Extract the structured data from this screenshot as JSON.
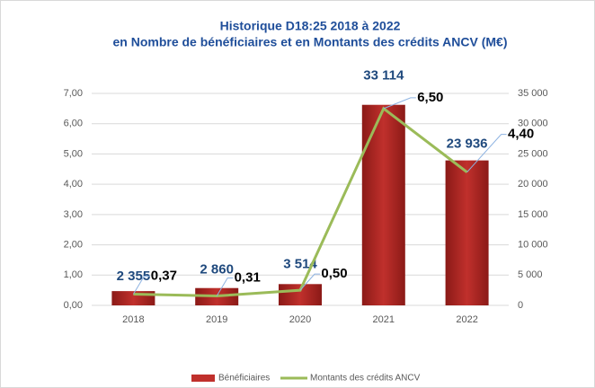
{
  "chart_data": {
    "type": "bar",
    "title": "Historique D18:25 2018 à 2022",
    "subtitle": "en Nombre de bénéficiaires et en Montants des crédits ANCV (M€)",
    "categories": [
      "2018",
      "2019",
      "2020",
      "2021",
      "2022"
    ],
    "series": [
      {
        "name": "Bénéficiaires",
        "type": "bar",
        "axis": "y2",
        "color": "#c0302c",
        "values": [
          2355,
          2860,
          3514,
          33114,
          23936
        ],
        "value_labels": [
          "2 355",
          "2 860",
          "3 514",
          "33 114",
          "23 936"
        ]
      },
      {
        "name": "Montants des crédits ANCV",
        "type": "line",
        "color": "#9bbb59",
        "values": [
          0.37,
          0.31,
          0.5,
          6.5,
          4.4
        ],
        "value_labels": [
          "0,37",
          "0,31",
          "0,50",
          "6,50",
          "4,40"
        ]
      }
    ],
    "ylim": [
      0,
      7
    ],
    "yticks": [
      {
        "value": 0,
        "label": "0,00"
      },
      {
        "value": 1,
        "label": "1,00"
      },
      {
        "value": 2,
        "label": "2,00"
      },
      {
        "value": 3,
        "label": "3,00"
      },
      {
        "value": 4,
        "label": "4,00"
      },
      {
        "value": 5,
        "label": "5,00"
      },
      {
        "value": 6,
        "label": "6,00"
      },
      {
        "value": 7,
        "label": "7,00"
      }
    ],
    "y2lim": [
      0,
      35000
    ],
    "y2ticks": [
      0,
      {
        "value": 5000,
        "label": "5 000"
      },
      {
        "value": 10000,
        "label": "10 000"
      },
      {
        "value": 15000,
        "label": "15 000"
      },
      {
        "value": 20000,
        "label": "20 000"
      },
      {
        "value": 25000,
        "label": "25 000"
      },
      {
        "value": 30000,
        "label": "30 000"
      },
      {
        "value": 35000,
        "label": "35 000"
      }
    ],
    "grid": true,
    "legend": "bottom"
  }
}
